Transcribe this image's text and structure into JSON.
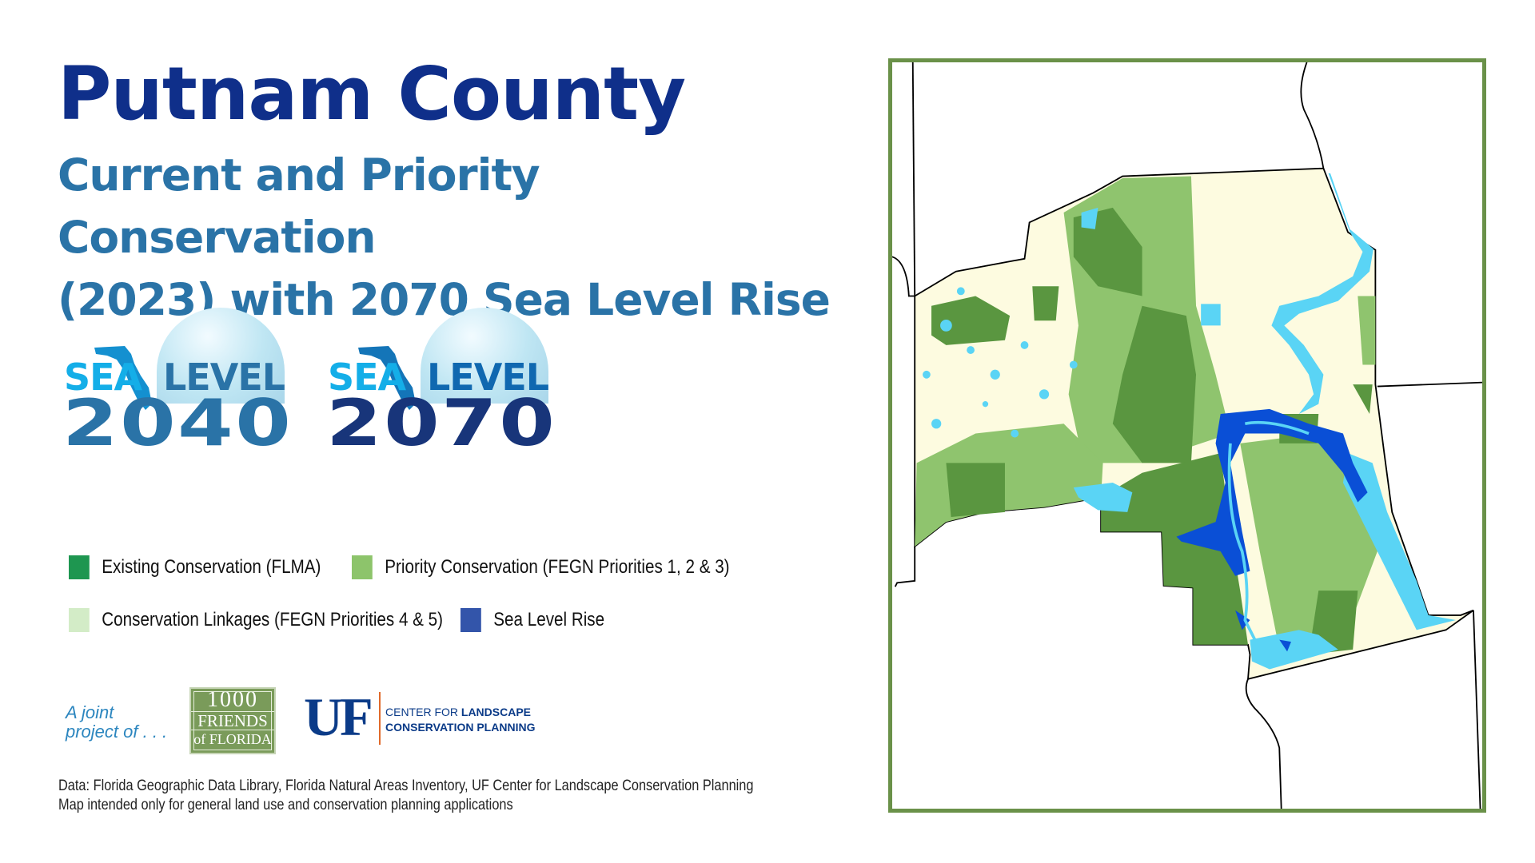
{
  "header": {
    "title": "Putnam County",
    "subtitle_line1": "Current and Priority Conservation",
    "subtitle_line2": "(2023) with 2070 Sea Level Rise"
  },
  "logos": [
    {
      "sea": "SEA",
      "level": "LEVEL",
      "year": "2040",
      "color": "#2a73a7"
    },
    {
      "sea": "SEA",
      "level": "LEVEL",
      "year": "2070",
      "color": "#18357a"
    }
  ],
  "legend": [
    {
      "label": "Existing Conservation (FLMA)",
      "color": "#1e9650"
    },
    {
      "label": "Priority Conservation (FEGN Priorities 1, 2 & 3)",
      "color": "#8dc46b"
    },
    {
      "label": "Conservation Linkages (FEGN Priorities 4 & 5)",
      "color": "#d3ecc7"
    },
    {
      "label": "Sea Level Rise",
      "color": "#3355aa"
    }
  ],
  "partners": {
    "joint_line1": "A joint",
    "joint_line2": "project of . . .",
    "friends_line1": "1000",
    "friends_line2": "FRIENDS",
    "friends_line3": "of FLORIDA",
    "uf": "UF",
    "uf_center_a": "CENTER FOR",
    "uf_center_b": "LANDSCAPE",
    "uf_center_c": "CONSERVATION PLANNING"
  },
  "footer": {
    "line1": "Data: Florida Geographic Data Library, Florida Natural Areas Inventory, UF Center for Landscape Conservation Planning",
    "line2": "Map intended only for general land use and conservation planning applications"
  },
  "map_colors": {
    "frame": "#6a9149",
    "base": "#fdfbe0",
    "priority": "#8fc46e",
    "existing": "#5a9640",
    "water": "#5ad4f5",
    "slr": "#0a4fd6"
  }
}
